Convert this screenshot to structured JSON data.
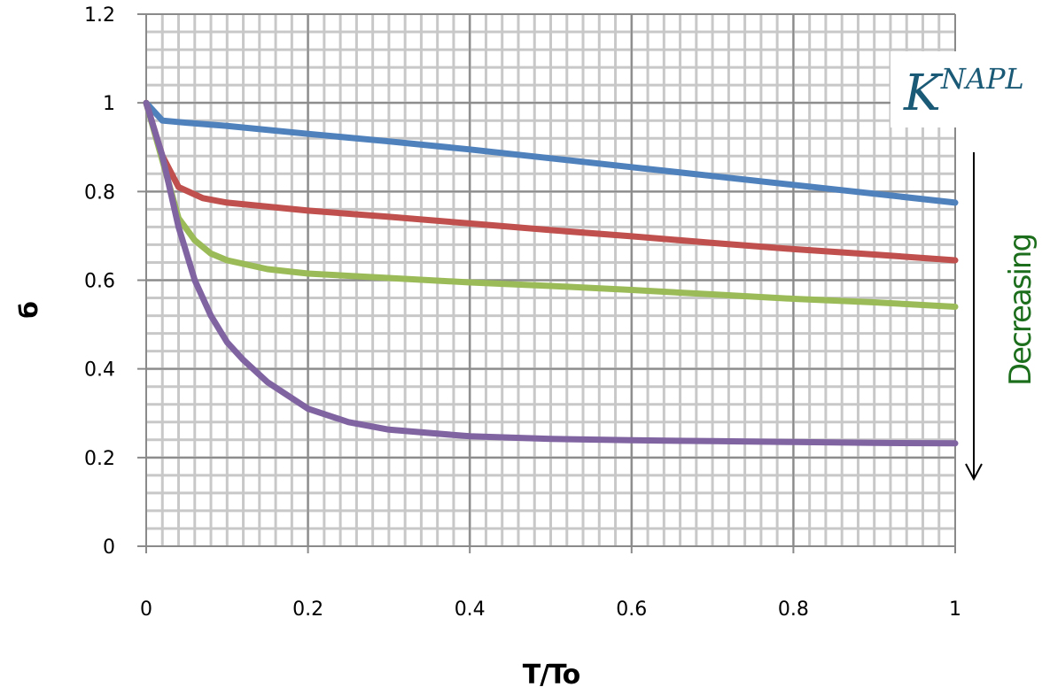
{
  "chart_data": {
    "type": "line",
    "title": "",
    "xlabel": "T/To",
    "ylabel": "б",
    "xlim": [
      0,
      1
    ],
    "ylim": [
      0,
      1.2
    ],
    "x_ticks": [
      "0",
      "0.2",
      "0.4",
      "0.6",
      "0.8",
      "1"
    ],
    "y_ticks": [
      "0",
      "0.2",
      "0.4",
      "0.6",
      "0.8",
      "1",
      "1.2"
    ],
    "grid": true,
    "series": [
      {
        "color": "#4f81bd",
        "points": [
          [
            0,
            1.0
          ],
          [
            0.02,
            0.96
          ],
          [
            0.05,
            0.955
          ],
          [
            0.1,
            0.948
          ],
          [
            0.2,
            0.93
          ],
          [
            0.3,
            0.913
          ],
          [
            0.4,
            0.895
          ],
          [
            0.5,
            0.875
          ],
          [
            0.6,
            0.855
          ],
          [
            0.7,
            0.835
          ],
          [
            0.8,
            0.815
          ],
          [
            0.9,
            0.795
          ],
          [
            1.0,
            0.775
          ]
        ]
      },
      {
        "color": "#c0504d",
        "points": [
          [
            0,
            1.0
          ],
          [
            0.02,
            0.88
          ],
          [
            0.04,
            0.81
          ],
          [
            0.07,
            0.785
          ],
          [
            0.1,
            0.775
          ],
          [
            0.2,
            0.757
          ],
          [
            0.3,
            0.743
          ],
          [
            0.4,
            0.728
          ],
          [
            0.5,
            0.713
          ],
          [
            0.6,
            0.699
          ],
          [
            0.7,
            0.684
          ],
          [
            0.8,
            0.67
          ],
          [
            0.9,
            0.658
          ],
          [
            1.0,
            0.645
          ]
        ]
      },
      {
        "color": "#9bbb59",
        "points": [
          [
            0,
            1.0
          ],
          [
            0.02,
            0.87
          ],
          [
            0.04,
            0.74
          ],
          [
            0.06,
            0.69
          ],
          [
            0.08,
            0.66
          ],
          [
            0.1,
            0.645
          ],
          [
            0.15,
            0.625
          ],
          [
            0.2,
            0.615
          ],
          [
            0.3,
            0.605
          ],
          [
            0.4,
            0.595
          ],
          [
            0.5,
            0.587
          ],
          [
            0.6,
            0.578
          ],
          [
            0.7,
            0.568
          ],
          [
            0.8,
            0.558
          ],
          [
            0.9,
            0.55
          ],
          [
            1.0,
            0.54
          ]
        ]
      },
      {
        "color": "#8064a2",
        "points": [
          [
            0,
            1.0
          ],
          [
            0.02,
            0.88
          ],
          [
            0.04,
            0.72
          ],
          [
            0.06,
            0.6
          ],
          [
            0.08,
            0.52
          ],
          [
            0.1,
            0.46
          ],
          [
            0.12,
            0.42
          ],
          [
            0.15,
            0.37
          ],
          [
            0.2,
            0.31
          ],
          [
            0.25,
            0.28
          ],
          [
            0.3,
            0.263
          ],
          [
            0.4,
            0.248
          ],
          [
            0.5,
            0.242
          ],
          [
            0.6,
            0.239
          ],
          [
            0.7,
            0.237
          ],
          [
            0.8,
            0.235
          ],
          [
            0.9,
            0.233
          ],
          [
            1.0,
            0.232
          ]
        ]
      }
    ],
    "annotations": [
      {
        "text": "K",
        "superscript": "NAPL",
        "color": "#1b5a76"
      },
      {
        "text": "Decreasing",
        "color": "#1c6e1c",
        "arrow": "down"
      }
    ]
  }
}
